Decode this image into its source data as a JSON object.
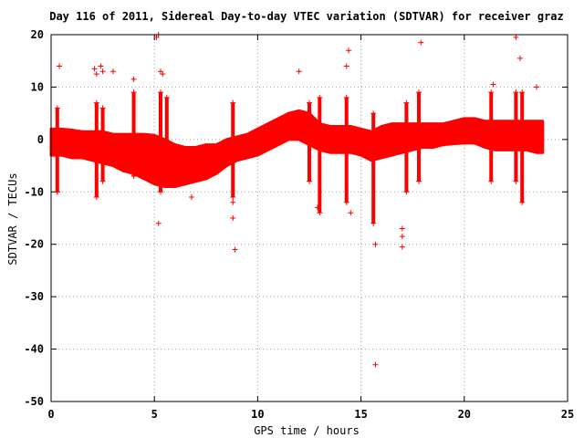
{
  "chart_data": {
    "type": "scatter",
    "title": "Day 116 of 2011, Sidereal Day-to-day VTEC variation (SDTVAR) for receiver graz",
    "xlabel": "GPS time / hours",
    "ylabel": "SDTVAR / TECUs",
    "xlim": [
      0,
      25
    ],
    "ylim": [
      -50,
      20
    ],
    "xticks": [
      0,
      5,
      10,
      15,
      20,
      25
    ],
    "yticks": [
      20,
      10,
      0,
      -10,
      -20,
      -30,
      -40,
      -50
    ],
    "grid": true,
    "marker": "+",
    "color": "#ff0000",
    "band": {
      "x": [
        0.0,
        0.5,
        1.0,
        1.5,
        2.0,
        2.5,
        3.0,
        3.5,
        4.0,
        4.5,
        5.0,
        5.5,
        6.0,
        6.5,
        7.0,
        7.5,
        8.0,
        8.5,
        9.0,
        9.5,
        10.0,
        10.5,
        11.0,
        11.5,
        12.0,
        12.5,
        13.0,
        13.5,
        14.0,
        14.5,
        15.0,
        15.5,
        16.0,
        16.5,
        17.0,
        17.5,
        18.0,
        18.5,
        19.0,
        19.5,
        20.0,
        20.5,
        21.0,
        21.5,
        22.0,
        22.5,
        23.0,
        23.5,
        23.8
      ],
      "upper": [
        2,
        2,
        1.8,
        1.5,
        1.5,
        1.5,
        1,
        1,
        1,
        1,
        0.8,
        0,
        -1,
        -1.5,
        -1.5,
        -1,
        -1,
        0,
        0.5,
        1,
        2,
        3,
        4,
        5,
        5.5,
        5,
        3,
        2.5,
        2.5,
        2.5,
        2,
        1.5,
        2.5,
        3,
        3,
        3,
        3,
        3,
        3,
        3.5,
        4,
        4,
        3.5,
        3.5,
        3.5,
        3.5,
        3.5,
        3.5,
        3.5
      ],
      "lower": [
        -3,
        -3,
        -3.5,
        -3.5,
        -4,
        -4.5,
        -5,
        -6,
        -6.5,
        -7.5,
        -8.5,
        -9,
        -9,
        -8.5,
        -8,
        -7.5,
        -6.5,
        -5,
        -4,
        -3.5,
        -3,
        -2,
        -1,
        0,
        0,
        -1,
        -2,
        -2.5,
        -2.5,
        -2.5,
        -3,
        -4,
        -3.5,
        -3,
        -2.5,
        -2,
        -1.5,
        -1.5,
        -1,
        -0.8,
        -0.7,
        -0.7,
        -1.5,
        -2,
        -2,
        -2,
        -2,
        -2.5,
        -2.5
      ]
    },
    "spikes": [
      {
        "x": 0.3,
        "ymin": -10,
        "ymax": 6
      },
      {
        "x": 2.2,
        "ymin": -11,
        "ymax": 7
      },
      {
        "x": 2.5,
        "ymin": -8,
        "ymax": 6
      },
      {
        "x": 4.0,
        "ymin": -7,
        "ymax": 9
      },
      {
        "x": 5.3,
        "ymin": -10,
        "ymax": 9
      },
      {
        "x": 5.6,
        "ymin": -8,
        "ymax": 8
      },
      {
        "x": 8.8,
        "ymin": -11,
        "ymax": 7
      },
      {
        "x": 12.5,
        "ymin": -8,
        "ymax": 7
      },
      {
        "x": 13.0,
        "ymin": -14,
        "ymax": 8
      },
      {
        "x": 14.3,
        "ymin": -12,
        "ymax": 8
      },
      {
        "x": 15.6,
        "ymin": -16,
        "ymax": 5
      },
      {
        "x": 17.2,
        "ymin": -10,
        "ymax": 7
      },
      {
        "x": 17.8,
        "ymin": -8,
        "ymax": 9
      },
      {
        "x": 21.3,
        "ymin": -8,
        "ymax": 9
      },
      {
        "x": 22.5,
        "ymin": -8,
        "ymax": 9
      },
      {
        "x": 22.8,
        "ymin": -12,
        "ymax": 9
      }
    ],
    "outliers": [
      {
        "x": 0.4,
        "y": 14
      },
      {
        "x": 0.3,
        "y": -10
      },
      {
        "x": 2.1,
        "y": 13.5
      },
      {
        "x": 2.2,
        "y": 12.5
      },
      {
        "x": 2.4,
        "y": 14
      },
      {
        "x": 2.5,
        "y": 13
      },
      {
        "x": 3.0,
        "y": 13
      },
      {
        "x": 4.0,
        "y": 11.5
      },
      {
        "x": 5.1,
        "y": 19.5
      },
      {
        "x": 5.2,
        "y": 20
      },
      {
        "x": 5.3,
        "y": 13
      },
      {
        "x": 5.4,
        "y": 12.5
      },
      {
        "x": 5.2,
        "y": -16
      },
      {
        "x": 6.8,
        "y": -11
      },
      {
        "x": 8.8,
        "y": -12
      },
      {
        "x": 8.8,
        "y": -15
      },
      {
        "x": 8.9,
        "y": -21
      },
      {
        "x": 12.0,
        "y": 13
      },
      {
        "x": 12.9,
        "y": -13
      },
      {
        "x": 14.3,
        "y": 14
      },
      {
        "x": 14.4,
        "y": 17
      },
      {
        "x": 14.5,
        "y": -14
      },
      {
        "x": 15.7,
        "y": -20
      },
      {
        "x": 15.7,
        "y": -43
      },
      {
        "x": 17.0,
        "y": -17
      },
      {
        "x": 17.0,
        "y": -18.5
      },
      {
        "x": 17.0,
        "y": -20.5
      },
      {
        "x": 17.9,
        "y": 18.5
      },
      {
        "x": 21.4,
        "y": 10.5
      },
      {
        "x": 22.5,
        "y": 19.5
      },
      {
        "x": 22.7,
        "y": 15.5
      },
      {
        "x": 23.5,
        "y": 10
      }
    ]
  }
}
